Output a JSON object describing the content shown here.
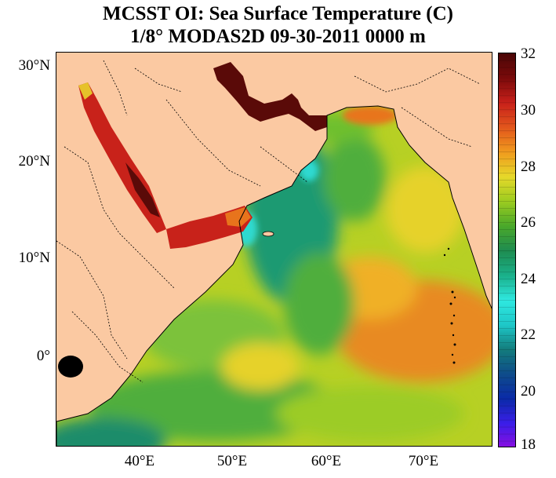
{
  "title": {
    "line1": "MCSST OI:  Sea Surface Temperature (C)",
    "line2": "1/8° MODAS2D 09-30-2011 0000 m"
  },
  "map": {
    "lat_labels": [
      "30°N",
      "20°N",
      "10°N",
      "0°"
    ],
    "lon_labels": [
      "40°E",
      "50°E",
      "60°E",
      "70°E"
    ],
    "land_color": "#fbc9a2",
    "colors": {
      "very_hot": "#5a0a08",
      "hot": "#c8221a",
      "warm_orange": "#e8741c",
      "yellow": "#e6d22a",
      "yellow_green": "#b7d024",
      "green": "#4fae3c",
      "teal": "#1f9a72",
      "cyan": "#2fd9d0",
      "dark_teal": "#127a70"
    }
  },
  "colorbar": {
    "labels": [
      "32",
      "30",
      "28",
      "26",
      "24",
      "22",
      "20",
      "18"
    ],
    "min": 18,
    "max": 32,
    "stops": [
      "#8a0ee0",
      "#3b1ee8",
      "#0a2aa8",
      "#0e4c8a",
      "#137c7c",
      "#1ec8c8",
      "#2fe8e0",
      "#1ab08a",
      "#1e8c50",
      "#4aa82a",
      "#9ccc20",
      "#e6d82a",
      "#f09a1e",
      "#e2561c",
      "#c8201a",
      "#7a0a0a",
      "#4a0606"
    ]
  }
}
